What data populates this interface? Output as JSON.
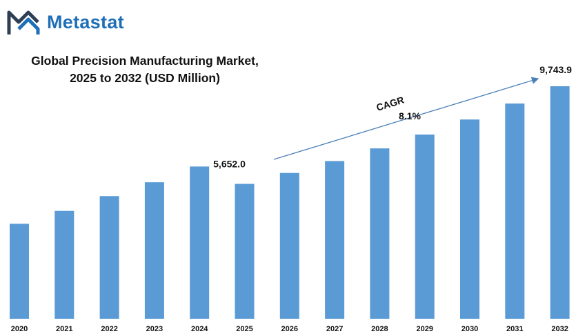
{
  "brand": {
    "name": "Metastat"
  },
  "chart_data": {
    "type": "bar",
    "title": "Global Precision Manufacturing Market, 2025 to 2032 (USD Million)",
    "title_lines": [
      "Global Precision Manufacturing Market,",
      "2025 to 2032 (USD Million)"
    ],
    "categories": [
      "2020",
      "2021",
      "2022",
      "2023",
      "2024",
      "2025",
      "2026",
      "2027",
      "2028",
      "2029",
      "2030",
      "2031",
      "2032"
    ],
    "values": [
      3980,
      4520,
      5140,
      5720,
      6380,
      5652.0,
      6110,
      6610,
      7140,
      7720,
      8350,
      9020,
      9743.9
    ],
    "data_labels": [
      {
        "category": "2025",
        "text": "5,652.0"
      },
      {
        "category": "2032",
        "text": "9,743.9"
      }
    ],
    "annotation": {
      "label": "CAGR",
      "value": "8.1%"
    },
    "color": "#5b9bd5",
    "grid": false,
    "legend": "none"
  }
}
